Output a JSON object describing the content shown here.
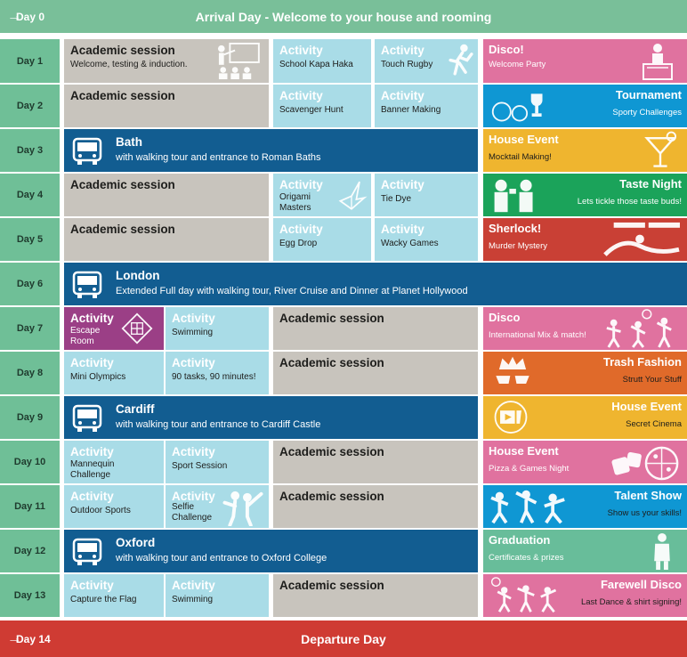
{
  "colors": {
    "day_tab": "#6fbf97",
    "academic": "#c8c4bd",
    "activity": "#a9dce7",
    "trip": "#125d91",
    "pink": "#e0729f",
    "blue": "#0f97d3",
    "yellow": "#efb52f",
    "green": "#1ba35a",
    "red": "#c94035",
    "orange": "#e06a2a",
    "teal": "#68bd9a",
    "arrival": "#79bf99",
    "departure": "#cf3b33"
  },
  "arrival": {
    "day": "Day 0",
    "title": "Arrival Day - Welcome to your house and rooming"
  },
  "departure": {
    "day": "Day 14",
    "title": "Departure Day"
  },
  "days": {
    "d1": {
      "label": "Day 1",
      "academic": {
        "title": "Academic session",
        "sub": "Welcome, testing & induction."
      },
      "act1": {
        "title": "Activity",
        "sub": "School Kapa Haka"
      },
      "act2": {
        "title": "Activity",
        "sub": "Touch Rugby"
      },
      "evening": {
        "title": "Disco!",
        "sub": "Welcome Party",
        "icon": "dj-icon"
      }
    },
    "d2": {
      "label": "Day 2",
      "academic": {
        "title": "Academic session"
      },
      "act1": {
        "title": "Activity",
        "sub": "Scavenger Hunt"
      },
      "act2": {
        "title": "Activity",
        "sub": "Banner Making"
      },
      "evening": {
        "title": "Tournament",
        "sub": "Sporty Challenges",
        "icon": "sports-balls-icon"
      }
    },
    "d3": {
      "label": "Day 3",
      "trip": {
        "title": "Bath",
        "sub": "with walking tour and entrance to Roman Baths"
      },
      "evening": {
        "title": "House Event",
        "sub": "Mocktail Making!",
        "icon": "cocktail-icon"
      }
    },
    "d4": {
      "label": "Day 4",
      "academic": {
        "title": "Academic session"
      },
      "act1": {
        "title": "Activity",
        "sub": "Origami Masters"
      },
      "act2": {
        "title": "Activity",
        "sub": "Tie Dye"
      },
      "evening": {
        "title": "Taste Night",
        "sub": "Lets tickle those taste buds!",
        "icon": "tasting-icon"
      }
    },
    "d5": {
      "label": "Day 5",
      "academic": {
        "title": "Academic session"
      },
      "act1": {
        "title": "Activity",
        "sub": "Egg Drop"
      },
      "act2": {
        "title": "Activity",
        "sub": "Wacky Games"
      },
      "evening": {
        "title": "Sherlock!",
        "sub": "Murder Mystery",
        "icon": "crime-scene-icon"
      }
    },
    "d6": {
      "label": "Day 6",
      "trip": {
        "title": "London",
        "sub": "Extended Full day with walking tour, River Cruise and Dinner at Planet Hollywood"
      }
    },
    "d7": {
      "label": "Day 7",
      "act1": {
        "title": "Activity",
        "sub": "Escape Room"
      },
      "act2": {
        "title": "Activity",
        "sub": "Swimming"
      },
      "academic": {
        "title": "Academic session"
      },
      "evening": {
        "title": "Disco",
        "sub": "International Mix & match!",
        "icon": "dancers-icon"
      }
    },
    "d8": {
      "label": "Day 8",
      "act1": {
        "title": "Activity",
        "sub": "Mini Olympics"
      },
      "act2": {
        "title": "Activity",
        "sub": "90 tasks, 90 minutes!"
      },
      "academic": {
        "title": "Academic session"
      },
      "evening": {
        "title": "Trash Fashion",
        "sub": "Strutt Your Stuff",
        "icon": "crown-glasses-icon"
      }
    },
    "d9": {
      "label": "Day 9",
      "trip": {
        "title": "Cardiff",
        "sub": "with walking tour and entrance to Cardiff Castle"
      },
      "evening": {
        "title": "House Event",
        "sub": "Secret Cinema",
        "icon": "cinema-icon"
      }
    },
    "d10": {
      "label": "Day 10",
      "act1": {
        "title": "Activity",
        "sub": "Mannequin Challenge"
      },
      "act2": {
        "title": "Activity",
        "sub": "Sport Session"
      },
      "academic": {
        "title": "Academic session"
      },
      "evening": {
        "title": "House Event",
        "sub": "Pizza & Games Night",
        "icon": "pizza-dice-icon"
      }
    },
    "d11": {
      "label": "Day 11",
      "act1": {
        "title": "Activity",
        "sub": "Outdoor Sports"
      },
      "act2": {
        "title": "Activity",
        "sub": "Selfie Challenge"
      },
      "academic": {
        "title": "Academic session"
      },
      "evening": {
        "title": "Talent Show",
        "sub": "Show us your skills!",
        "icon": "performers-icon"
      }
    },
    "d12": {
      "label": "Day 12",
      "trip": {
        "title": "Oxford",
        "sub": "with walking tour and entrance to Oxford College"
      },
      "evening": {
        "title": "Graduation",
        "sub": "Certificates & prizes",
        "icon": "graduate-icon"
      }
    },
    "d13": {
      "label": "Day 13",
      "act1": {
        "title": "Activity",
        "sub": "Capture the Flag"
      },
      "act2": {
        "title": "Activity",
        "sub": "Swimming"
      },
      "academic": {
        "title": "Academic session"
      },
      "evening": {
        "title": "Farewell Disco",
        "sub": "Last Dance & shirt signing!",
        "icon": "party-icon"
      }
    }
  }
}
